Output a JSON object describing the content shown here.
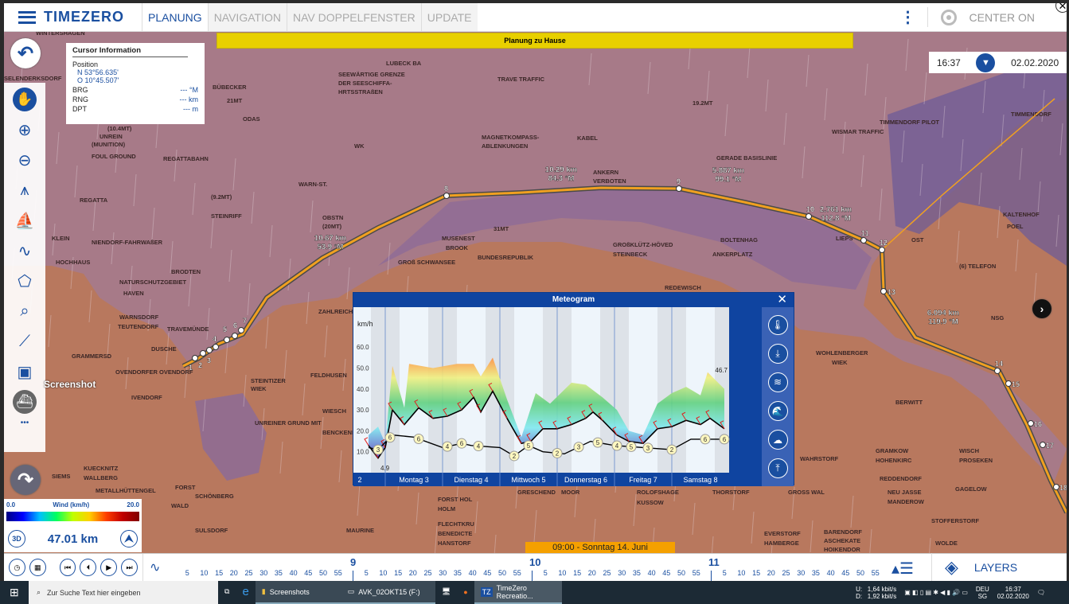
{
  "app": {
    "logo": "TIMEZERO",
    "tabs": [
      {
        "label": "PLANUNG",
        "active": true
      },
      {
        "label": "NAVIGATION"
      },
      {
        "label": "NAV DOPPELFENSTER"
      },
      {
        "label": "UPDATE"
      }
    ],
    "center_on": "CENTER ON",
    "banner": "Planung zu Hause",
    "time": "16:37",
    "date": "02.02.2020",
    "accent": "#1a4fa0"
  },
  "cursor_info": {
    "title": "Cursor Information",
    "position_label": "Position",
    "lat": "N 53°56.635'",
    "lon": "O 10°45.507'",
    "rows": [
      {
        "label": "BRG",
        "value": "--- °M"
      },
      {
        "label": "RNG",
        "value": "--- km"
      },
      {
        "label": "DPT",
        "value": "--- m"
      }
    ]
  },
  "tools": {
    "screenshot_label": "Screenshot",
    "more": "•••"
  },
  "legend": {
    "min": "0.0",
    "title": "Wind (km/h)",
    "max": "20.0"
  },
  "scale": {
    "mode": "3D",
    "distance": "47.01 km"
  },
  "timeline": {
    "current": "09:00 - Sonntag 14. Juni",
    "hours": [
      "9",
      "10",
      "11"
    ],
    "minutes": [
      "5",
      "10",
      "15",
      "20",
      "25",
      "30",
      "35",
      "40",
      "45",
      "50",
      "55"
    ]
  },
  "layers_label": "LAYERS",
  "map": {
    "labels": [
      "WINTERSHAGEN",
      "SELENDERKSDORF",
      "BÜBECKER",
      "21MT",
      "ODAS",
      "WARN-ST.",
      "LUBECK BA",
      "SEEWÄRTIGE GRENZE",
      "DER SEESCHIFFA-",
      "HRTSSTRAßEN",
      "TRAVE TRAFFIC",
      "(10.4MT)",
      "UNREIN",
      "(MUNITION)",
      "FOUL GROUND",
      "REGATTABAHN",
      "WK",
      "MAGNETKOMPASS-",
      "ABLENKUNGEN",
      "KABEL",
      "ANKERN",
      "VERBOTEN",
      "19.2MT",
      "GERADE BASISLINIE",
      "TIMMENDORF PILOT",
      "WISMAR TRAFFIC",
      "REGATTA",
      "(9.2MT)",
      "STEINRIFF",
      "OBSTN",
      "(20MT)",
      "31MT",
      "MUSENEST",
      "BROOK",
      "GROß SCHWANSEE",
      "BUNDESREPUBLIK",
      "GROßKLÜTZ-HÖVED",
      "STEINBECK",
      "BOLTENHAG",
      "ANKERPLATZ",
      "KLEIN",
      "NIENDORF-FAHRWAßER",
      "HOCHHAUS",
      "BRODTEN",
      "NATURSCHUTZGEBIET",
      "HAVEN",
      "WARNSDORF",
      "TEUTENDORF",
      "TRAVEMÜNDE",
      "DUSCHE",
      "GRAMMERSD",
      "OVENDORFER OVENDORF",
      "IVENDORF",
      "KUECKNITZ",
      "WALLBERG",
      "SIEMS",
      "METALLHÜTTENGEL",
      "FORST",
      "SCHÖNBERG",
      "WALD",
      "SULSDORF",
      "MAURINE",
      "FLECHTKRU",
      "BENEDICTE",
      "HANSTORF",
      "FORST HOL",
      "HOLM",
      "GRESCHEND",
      "MOOR",
      "ROLOFSHAGE",
      "KUSSOW",
      "THORSTORF",
      "GROSS WAL",
      "EVERSTORF",
      "HAMBERGE",
      "BARENDORF",
      "ASCHEKATE",
      "HOIKENDOR",
      "NEU JASSE",
      "MANDEROW",
      "STOFFERSTORF",
      "WOLDE",
      "GAGELOW",
      "WISCH",
      "PROSEKEN",
      "GRAMKOW",
      "HOHENKIRC",
      "WOHLENBERGER",
      "WIEK",
      "KALTENHOF",
      "POEL",
      "(6) TELEFON",
      "NSG",
      "OST",
      "TIMMENDORF",
      "ZAHLREICH",
      "REDEWISCH",
      "FELDHUSEN",
      "WIESCH",
      "BENCKENDORF",
      "UNREINER GRUND MIT",
      "STEINTIZER",
      "WIEK",
      "LIEPS",
      "REDDENDORF",
      "WAHRSTORF",
      "BERWITT"
    ],
    "route_labels": [
      {
        "dist": "10.67 km",
        "brg": "53.9 °M"
      },
      {
        "dist": "10.29 km",
        "brg": "84.3 °M"
      },
      {
        "dist": "5.887 km",
        "brg": "99.1 °M"
      },
      {
        "dist": "2.761 km",
        "brg": "112.8 °M"
      },
      {
        "dist": "6.094 km",
        "brg": "119.9 °M"
      }
    ],
    "waypoints": [
      "1",
      "2",
      "3",
      "4",
      "5",
      "6",
      "7",
      "8",
      "9",
      "10",
      "11",
      "12",
      "13",
      "14",
      "15",
      "16",
      "17",
      "18"
    ]
  },
  "meteogram": {
    "title": "Meteogram",
    "unit": "km/h",
    "peak_label": "46.7",
    "min_label": "4.9"
  },
  "chart_data": {
    "type": "area",
    "title": "Meteogram",
    "ylabel": "km/h",
    "ylim": [
      0,
      70
    ],
    "yticks": [
      "10.0",
      "20.0",
      "30.0",
      "40.0",
      "50.0",
      "60.0"
    ],
    "day_labels": [
      "2",
      "Montag 3",
      "Dienstag 4",
      "Mittwoch 5",
      "Donnerstag 6",
      "Freitag 7",
      "Samstag 8"
    ],
    "series": [
      {
        "key": "wind",
        "points": [
          [
            "So 2 17:00",
            13
          ],
          [
            "So 2 21:00",
            7
          ],
          [
            "Mo 3 00:00",
            12
          ],
          [
            "Mo 3 03:00",
            30
          ],
          [
            "Mo 3 08:00",
            23
          ],
          [
            "Mo 3 14:00",
            31
          ],
          [
            "Mo 3 20:00",
            26
          ],
          [
            "Di 4 02:00",
            27
          ],
          [
            "Di 4 08:00",
            30
          ],
          [
            "Di 4 13:00",
            36
          ],
          [
            "Di 4 16:00",
            29
          ],
          [
            "Di 4 21:00",
            39
          ],
          [
            "Mi 5 03:00",
            26
          ],
          [
            "Mi 5 09:00",
            14
          ],
          [
            "Mi 5 13:00",
            15
          ],
          [
            "Mi 5 18:00",
            21
          ],
          [
            "Do 6 00:00",
            21
          ],
          [
            "Do 6 06:00",
            23
          ],
          [
            "Do 6 12:00",
            26
          ],
          [
            "Do 6 15:00",
            29
          ],
          [
            "Do 6 19:00",
            25
          ],
          [
            "Fr 7 01:00",
            18
          ],
          [
            "Fr 7 06:00",
            15
          ],
          [
            "Fr 7 12:00",
            14
          ],
          [
            "Fr 7 18:00",
            21
          ],
          [
            "Sa 8 00:00",
            22
          ],
          [
            "Sa 8 06:00",
            25
          ],
          [
            "Sa 8 12:00",
            23
          ],
          [
            "Sa 8 16:00",
            26
          ],
          [
            "Sa 8 22:00",
            21
          ]
        ]
      },
      {
        "key": "gust",
        "points": [
          [
            "So 2 17:00",
            18
          ],
          [
            "So 2 21:00",
            22
          ],
          [
            "Mo 3 00:00",
            14
          ],
          [
            "Mo 3 03:00",
            51
          ],
          [
            "Mo 3 08:00",
            31
          ],
          [
            "Mo 3 10:00",
            52
          ],
          [
            "Mo 3 20:00",
            50
          ],
          [
            "Di 4 06:00",
            52
          ],
          [
            "Di 4 13:00",
            52
          ],
          [
            "Di 4 16:00",
            46
          ],
          [
            "Di 4 21:00",
            55
          ],
          [
            "Mi 5 03:00",
            35
          ],
          [
            "Mi 5 09:00",
            17
          ],
          [
            "Mi 5 15:00",
            38
          ],
          [
            "Mi 5 21:00",
            33
          ],
          [
            "Do 6 06:00",
            43
          ],
          [
            "Do 6 12:00",
            42
          ],
          [
            "Do 6 19:00",
            36
          ],
          [
            "Fr 7 01:00",
            30
          ],
          [
            "Fr 7 06:00",
            20
          ],
          [
            "Fr 7 12:00",
            18
          ],
          [
            "Fr 7 18:00",
            33
          ],
          [
            "Sa 8 00:00",
            38
          ],
          [
            "Sa 8 06:00",
            41
          ],
          [
            "Sa 8 12:00",
            37
          ],
          [
            "Sa 8 15:00",
            48
          ],
          [
            "Sa 8 22:00",
            40
          ]
        ]
      },
      {
        "key": "lower",
        "points": [
          [
            "So 2 17:00",
            12
          ],
          [
            "So 2 21:00",
            11
          ],
          [
            "Mo 3 03:00",
            18
          ],
          [
            "Mo 3 12:00",
            17
          ],
          [
            "Di 4 00:00",
            12
          ],
          [
            "Di 4 08:00",
            14
          ],
          [
            "Di 4 12:00",
            13
          ],
          [
            "Mi 5 00:00",
            12
          ],
          [
            "Mi 5 06:00",
            8
          ],
          [
            "Mi 5 12:00",
            13
          ],
          [
            "Mi 5 18:00",
            10
          ],
          [
            "Do 6 03:00",
            9
          ],
          [
            "Do 6 14:00",
            15
          ],
          [
            "Fr 7 00:00",
            13
          ],
          [
            "Fr 7 12:00",
            12
          ],
          [
            "Sa 8 00:00",
            11
          ],
          [
            "Sa 8 08:00",
            16
          ],
          [
            "Sa 8 22:00",
            16
          ]
        ]
      }
    ],
    "markers": [
      [
        "So 2 21:00",
        "3"
      ],
      [
        "Mo 3 02:00",
        "6"
      ],
      [
        "Mo 3 14:00",
        "6"
      ],
      [
        "Di 4 02:00",
        "4"
      ],
      [
        "Di 4 08:00",
        "6"
      ],
      [
        "Di 4 15:00",
        "4"
      ],
      [
        "Mi 5 06:00",
        "2"
      ],
      [
        "Mi 5 12:00",
        "5"
      ],
      [
        "Do 6 00:00",
        "2"
      ],
      [
        "Do 6 09:00",
        "3"
      ],
      [
        "Do 6 17:00",
        "5"
      ],
      [
        "Fr 7 01:00",
        "4"
      ],
      [
        "Fr 7 07:00",
        "5"
      ],
      [
        "Fr 7 14:00",
        "3"
      ],
      [
        "Sa 8 00:00",
        "2"
      ],
      [
        "Sa 8 14:00",
        "6"
      ],
      [
        "Sa 8 22:00",
        "6"
      ]
    ]
  },
  "taskbar": {
    "search_placeholder": "Zur Suche Text hier eingeben",
    "apps": [
      "Screenshots",
      "AVK_02OKT15 (F:)",
      "TimeZero Recreatio..."
    ],
    "net_up": "1,64 kbit/s",
    "net_down": "1,92 kbit/s",
    "net_u": "U:",
    "net_d": "D:",
    "lang": "DEU",
    "lang2": "SG",
    "time": "16:37",
    "date": "02.02.2020"
  }
}
